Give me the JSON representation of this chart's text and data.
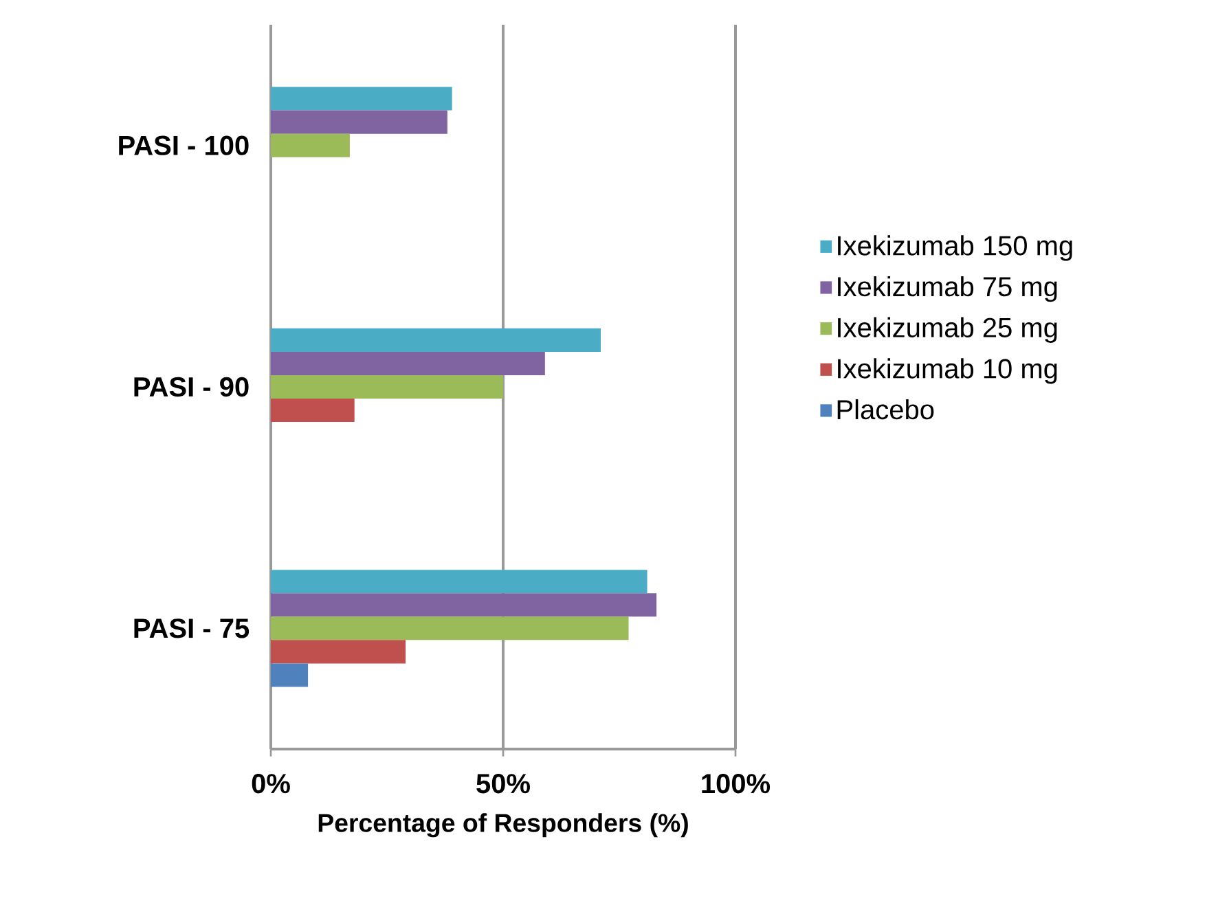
{
  "chart_data": {
    "type": "bar",
    "orientation": "horizontal",
    "xlabel": "Percentage of Responders (%)",
    "categories": [
      "PASI - 100",
      "PASI - 90",
      "PASI - 75"
    ],
    "series": [
      {
        "name": "Ixekizumab 150 mg",
        "color": "#4bacc6",
        "values": [
          39,
          71,
          81
        ]
      },
      {
        "name": "Ixekizumab 75 mg",
        "color": "#8064a2",
        "values": [
          38,
          59,
          83
        ]
      },
      {
        "name": "Ixekizumab 25 mg",
        "color": "#9bbb59",
        "values": [
          17,
          50,
          77
        ]
      },
      {
        "name": "Ixekizumab 10 mg",
        "color": "#c0504d",
        "values": [
          0,
          18,
          29
        ]
      },
      {
        "name": "Placebo",
        "color": "#4f81bd",
        "values": [
          0,
          0,
          8
        ]
      }
    ],
    "xlim": [
      0,
      100
    ],
    "xticks": [
      {
        "value": 0,
        "label": "0%"
      },
      {
        "value": 50,
        "label": "50%"
      },
      {
        "value": 100,
        "label": "100%"
      }
    ],
    "grid": "x",
    "legend": "right"
  }
}
